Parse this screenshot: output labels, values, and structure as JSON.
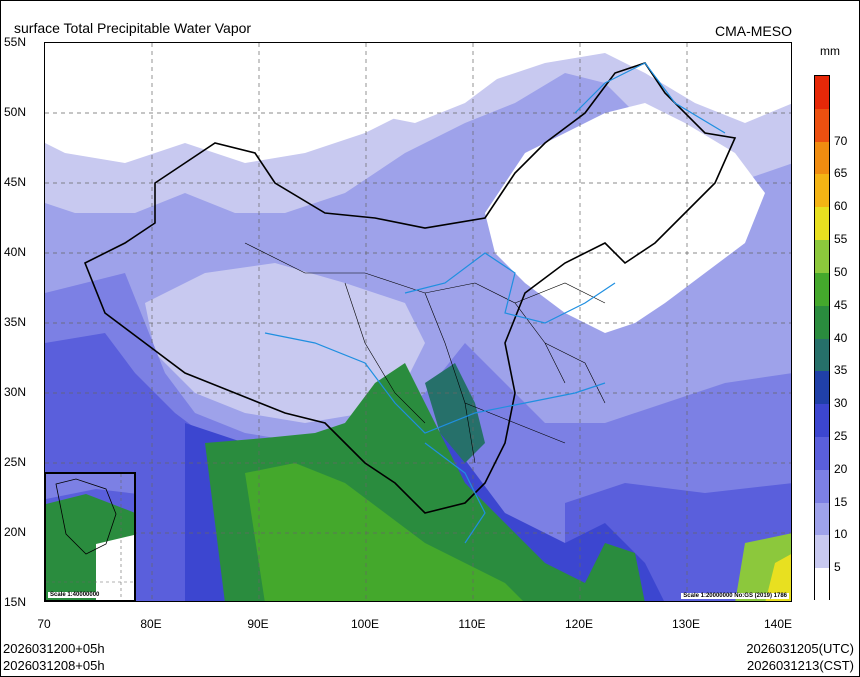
{
  "title": "surface Total Precipitable Water Vapor",
  "model": "CMA-MESO",
  "unit": "mm",
  "lat_labels": [
    "55N",
    "50N",
    "45N",
    "40N",
    "35N",
    "30N",
    "25N",
    "20N",
    "15N"
  ],
  "lon_labels": [
    "70",
    "80E",
    "90E",
    "100E",
    "110E",
    "120E",
    "130E",
    "140E"
  ],
  "colorbar": {
    "levels": [
      "5",
      "10",
      "15",
      "20",
      "25",
      "30",
      "35",
      "40",
      "45",
      "50",
      "55",
      "60",
      "65",
      "70"
    ],
    "colors": [
      "#ffffff",
      "#c8c9f0",
      "#9ea2ea",
      "#7c80e4",
      "#5a5fdc",
      "#3c46d0",
      "#2040a8",
      "#26706a",
      "#2a8c3e",
      "#44a82c",
      "#8cc83c",
      "#e8e020",
      "#f4b414",
      "#f08c10",
      "#ec5010",
      "#e62808"
    ]
  },
  "scale_main": "Scale 1:20000000 No:GS (2019) 1786",
  "scale_inset": "Scale 1:40000000",
  "init_time": "2026031200+05h",
  "init_time_cst": "2026031208+05h",
  "valid_utc": "2026031205(UTC)",
  "valid_cst": "2026031213(CST)"
}
